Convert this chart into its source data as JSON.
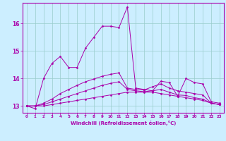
{
  "title": "",
  "xlabel": "Windchill (Refroidissement éolien,°C)",
  "background_color": "#cceeff",
  "grid_color": "#99cccc",
  "line_color": "#aa00aa",
  "xlim": [
    -0.5,
    23.5
  ],
  "ylim": [
    12.75,
    16.75
  ],
  "yticks": [
    13,
    14,
    15,
    16
  ],
  "xticks": [
    0,
    1,
    2,
    3,
    4,
    5,
    6,
    7,
    8,
    9,
    10,
    11,
    12,
    13,
    14,
    15,
    16,
    17,
    18,
    19,
    20,
    21,
    22,
    23
  ],
  "lines": [
    {
      "x": [
        0,
        1,
        2,
        3,
        4,
        5,
        6,
        7,
        8,
        9,
        10,
        11,
        12,
        13,
        14,
        15,
        16,
        17,
        18,
        19,
        20,
        21,
        22,
        23
      ],
      "y": [
        13.0,
        12.9,
        14.0,
        14.55,
        14.8,
        14.4,
        14.4,
        15.1,
        15.5,
        15.9,
        15.9,
        15.85,
        16.6,
        13.65,
        13.6,
        13.55,
        13.9,
        13.85,
        13.35,
        14.0,
        13.85,
        13.8,
        13.15,
        13.1
      ]
    },
    {
      "x": [
        0,
        1,
        2,
        3,
        4,
        5,
        6,
        7,
        8,
        9,
        10,
        11,
        12,
        13,
        14,
        15,
        16,
        17,
        18,
        19,
        20,
        21,
        22,
        23
      ],
      "y": [
        13.0,
        13.0,
        13.0,
        13.05,
        13.1,
        13.15,
        13.2,
        13.25,
        13.3,
        13.35,
        13.4,
        13.45,
        13.5,
        13.5,
        13.5,
        13.5,
        13.45,
        13.4,
        13.35,
        13.3,
        13.25,
        13.2,
        13.1,
        13.05
      ]
    },
    {
      "x": [
        0,
        1,
        2,
        3,
        4,
        5,
        6,
        7,
        8,
        9,
        10,
        11,
        12,
        13,
        14,
        15,
        16,
        17,
        18,
        19,
        20,
        21,
        22,
        23
      ],
      "y": [
        13.0,
        13.0,
        13.05,
        13.15,
        13.25,
        13.35,
        13.45,
        13.55,
        13.65,
        13.75,
        13.82,
        13.88,
        13.6,
        13.55,
        13.52,
        13.55,
        13.6,
        13.5,
        13.4,
        13.38,
        13.3,
        13.25,
        13.1,
        13.05
      ]
    },
    {
      "x": [
        0,
        1,
        2,
        3,
        4,
        5,
        6,
        7,
        8,
        9,
        10,
        11,
        12,
        13,
        14,
        15,
        16,
        17,
        18,
        19,
        20,
        21,
        22,
        23
      ],
      "y": [
        13.0,
        13.0,
        13.1,
        13.25,
        13.45,
        13.6,
        13.75,
        13.88,
        13.98,
        14.08,
        14.15,
        14.2,
        13.65,
        13.6,
        13.58,
        13.7,
        13.8,
        13.65,
        13.55,
        13.5,
        13.45,
        13.4,
        13.1,
        13.05
      ]
    }
  ]
}
